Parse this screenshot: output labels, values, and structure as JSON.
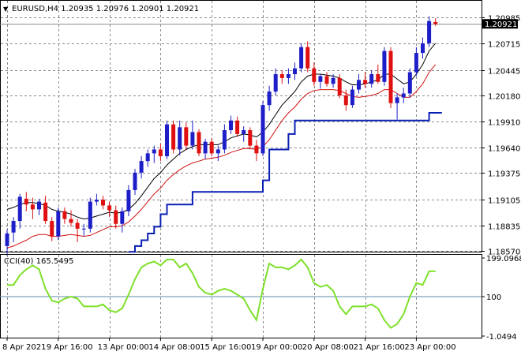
{
  "header": {
    "marker": "▼",
    "title": "EURUSD,H4  1.20935 1.20976 1.20901 1.20921"
  },
  "indicator": {
    "title": "CCI(40) 165.5495"
  },
  "price_axis": {
    "current_price": "1.20921",
    "current_price_value": 1.20921,
    "labels": [
      {
        "text": "1.20985",
        "value": 1.20985
      },
      {
        "text": "1.20715",
        "value": 1.20715
      },
      {
        "text": "1.20445",
        "value": 1.20445
      },
      {
        "text": "1.20180",
        "value": 1.2018
      },
      {
        "text": "1.19910",
        "value": 1.1991
      },
      {
        "text": "1.19640",
        "value": 1.1964
      },
      {
        "text": "1.19375",
        "value": 1.19375
      },
      {
        "text": "1.19105",
        "value": 1.19105
      },
      {
        "text": "1.18835",
        "value": 1.18835
      },
      {
        "text": "1.18570",
        "value": 1.1857
      }
    ]
  },
  "cci_axis": {
    "labels": [
      {
        "text": "199.0968",
        "value": 199.0968
      },
      {
        "text": "100",
        "value": 100
      },
      {
        "text": "-1.0494",
        "value": -1.0494
      }
    ]
  },
  "time_axis": {
    "labels": [
      "8 Apr 2021",
      "9 Apr 16:00",
      "13 Apr 00:00",
      "14 Apr 08:00",
      "15 Apr 16:00",
      "19 Apr 00:00",
      "20 Apr 08:00",
      "21 Apr 16:00",
      "23 Apr 00:00"
    ],
    "label_bars": [
      0,
      8,
      16,
      24,
      32,
      40,
      48,
      56,
      64
    ]
  },
  "colors": {
    "bull": "#1e1ec8",
    "bear": "#e01010",
    "ma_fast": "#000000",
    "ma_slow": "#d01010",
    "stop": "#0a1fb4",
    "cci": "#7ee02a",
    "grid": "#8a8a8a",
    "level": "#5b8ba8"
  },
  "chart_data": {
    "type": "candlestick",
    "symbol": "EURUSD",
    "timeframe": "H4",
    "ylim": [
      1.1857,
      1.2107
    ],
    "ohlc": [
      [
        1.1862,
        1.1879,
        1.1852,
        1.1875
      ],
      [
        1.1876,
        1.1892,
        1.1866,
        1.1888
      ],
      [
        1.1888,
        1.1916,
        1.188,
        1.1913
      ],
      [
        1.1911,
        1.1918,
        1.1898,
        1.1905
      ],
      [
        1.1905,
        1.1912,
        1.189,
        1.19
      ],
      [
        1.19,
        1.1911,
        1.1894,
        1.1908
      ],
      [
        1.1907,
        1.1914,
        1.1885,
        1.1888
      ],
      [
        1.1888,
        1.1892,
        1.1867,
        1.1872
      ],
      [
        1.1872,
        1.1902,
        1.1868,
        1.1898
      ],
      [
        1.1898,
        1.1902,
        1.1885,
        1.189
      ],
      [
        1.189,
        1.1899,
        1.1882,
        1.1886
      ],
      [
        1.1886,
        1.189,
        1.1866,
        1.188
      ],
      [
        1.188,
        1.1885,
        1.1872,
        1.188
      ],
      [
        1.188,
        1.1912,
        1.1876,
        1.1908
      ],
      [
        1.1908,
        1.1916,
        1.1904,
        1.191
      ],
      [
        1.191,
        1.1914,
        1.19,
        1.1904
      ],
      [
        1.1904,
        1.1908,
        1.1892,
        1.1899
      ],
      [
        1.1899,
        1.1904,
        1.188,
        1.1885
      ],
      [
        1.1885,
        1.1902,
        1.1876,
        1.1898
      ],
      [
        1.1898,
        1.1925,
        1.1893,
        1.192
      ],
      [
        1.192,
        1.1942,
        1.1915,
        1.1938
      ],
      [
        1.1938,
        1.1955,
        1.1932,
        1.195
      ],
      [
        1.195,
        1.1962,
        1.1944,
        1.1958
      ],
      [
        1.1958,
        1.1966,
        1.1948,
        1.1962
      ],
      [
        1.1962,
        1.1968,
        1.195,
        1.1955
      ],
      [
        1.1955,
        1.1992,
        1.1952,
        1.1988
      ],
      [
        1.1988,
        1.1992,
        1.1958,
        1.1962
      ],
      [
        1.1962,
        1.1992,
        1.1956,
        1.1985
      ],
      [
        1.1985,
        1.199,
        1.1962,
        1.1966
      ],
      [
        1.1966,
        1.1992,
        1.1962,
        1.198
      ],
      [
        1.198,
        1.1983,
        1.1955,
        1.1958
      ],
      [
        1.1958,
        1.1973,
        1.1952,
        1.197
      ],
      [
        1.197,
        1.1974,
        1.1955,
        1.1958
      ],
      [
        1.1958,
        1.1966,
        1.195,
        1.1962
      ],
      [
        1.1962,
        1.1988,
        1.1958,
        1.1982
      ],
      [
        1.1982,
        1.1997,
        1.1978,
        1.1992
      ],
      [
        1.1992,
        1.1996,
        1.1975,
        1.1978
      ],
      [
        1.1978,
        1.1986,
        1.197,
        1.1982
      ],
      [
        1.1982,
        1.1985,
        1.1962,
        1.1966
      ],
      [
        1.1966,
        1.1972,
        1.195,
        1.1958
      ],
      [
        1.1958,
        1.2012,
        1.1955,
        1.2008
      ],
      [
        1.2008,
        1.2028,
        1.2002,
        1.2022
      ],
      [
        1.2022,
        1.2046,
        1.2018,
        1.204
      ],
      [
        1.204,
        1.2044,
        1.203,
        1.2036
      ],
      [
        1.2036,
        1.2046,
        1.203,
        1.204
      ],
      [
        1.204,
        1.2052,
        1.2034,
        1.2046
      ],
      [
        1.2046,
        1.2072,
        1.2042,
        1.2068
      ],
      [
        1.2068,
        1.2074,
        1.2042,
        1.2046
      ],
      [
        1.2046,
        1.2052,
        1.2028,
        1.2032
      ],
      [
        1.2032,
        1.204,
        1.2025,
        1.2038
      ],
      [
        1.2038,
        1.2042,
        1.2027,
        1.203
      ],
      [
        1.203,
        1.204,
        1.2026,
        1.2036
      ],
      [
        1.2036,
        1.204,
        1.2015,
        1.2018
      ],
      [
        1.2018,
        1.2024,
        1.2002,
        1.2008
      ],
      [
        1.2008,
        1.2028,
        1.2005,
        1.2024
      ],
      [
        1.2024,
        1.204,
        1.202,
        1.2034
      ],
      [
        1.2034,
        1.2042,
        1.2026,
        1.203
      ],
      [
        1.203,
        1.2044,
        1.2026,
        1.204
      ],
      [
        1.204,
        1.205,
        1.203,
        1.2032
      ],
      [
        1.2032,
        1.2068,
        1.2028,
        1.2064
      ],
      [
        1.2064,
        1.2068,
        1.2005,
        1.201
      ],
      [
        1.201,
        1.202,
        1.1993,
        1.2016
      ],
      [
        1.2016,
        1.2026,
        1.201,
        1.202
      ],
      [
        1.202,
        1.2046,
        1.2016,
        1.2042
      ],
      [
        1.2042,
        1.2068,
        1.2038,
        1.2062
      ],
      [
        1.2062,
        1.2078,
        1.2056,
        1.2072
      ],
      [
        1.2072,
        1.21,
        1.2068,
        1.2095
      ],
      [
        1.2094,
        1.2098,
        1.209,
        1.2092
      ]
    ],
    "ma_fast": [
      1.19,
      1.1902,
      1.1905,
      1.1907,
      1.1907,
      1.1906,
      1.1904,
      1.19,
      1.1898,
      1.1897,
      1.1895,
      1.1892,
      1.189,
      1.1891,
      1.1893,
      1.1895,
      1.1897,
      1.1896,
      1.1897,
      1.19,
      1.1906,
      1.1914,
      1.1923,
      1.1932,
      1.1938,
      1.1946,
      1.1952,
      1.1958,
      1.1962,
      1.1965,
      1.1967,
      1.1967,
      1.1967,
      1.1967,
      1.197,
      1.1974,
      1.1976,
      1.1978,
      1.1977,
      1.1975,
      1.198,
      1.1988,
      1.1998,
      1.2008,
      1.2015,
      1.2022,
      1.2032,
      1.2038,
      1.204,
      1.204,
      1.2039,
      1.2038,
      1.2036,
      1.2032,
      1.2029,
      1.2029,
      1.203,
      1.2032,
      1.2034,
      1.204,
      1.204,
      1.2035,
      1.203,
      1.2032,
      1.204,
      1.205,
      1.2064,
      1.2072
    ],
    "ma_slow": [
      1.186,
      1.1862,
      1.1865,
      1.1868,
      1.1872,
      1.1874,
      1.1874,
      1.1872,
      1.1872,
      1.1873,
      1.1874,
      1.1873,
      1.1872,
      1.1873,
      1.1876,
      1.1879,
      1.1882,
      1.1882,
      1.1883,
      1.1887,
      1.1893,
      1.19,
      1.1908,
      1.1916,
      1.1922,
      1.193,
      1.1936,
      1.1941,
      1.1945,
      1.1948,
      1.195,
      1.1952,
      1.1953,
      1.1954,
      1.1956,
      1.1959,
      1.1961,
      1.1963,
      1.1963,
      1.1962,
      1.1965,
      1.1972,
      1.1982,
      1.1992,
      1.2,
      1.2006,
      1.2014,
      1.202,
      1.2023,
      1.2024,
      1.2024,
      1.2024,
      1.2023,
      1.202,
      1.2017,
      1.2016,
      1.2017,
      1.2018,
      1.202,
      1.2024,
      1.2024,
      1.202,
      1.2016,
      1.2016,
      1.2022,
      1.203,
      1.2042,
      1.205
    ],
    "stop_line": [
      null,
      null,
      null,
      null,
      null,
      null,
      null,
      null,
      null,
      null,
      null,
      null,
      null,
      null,
      null,
      null,
      null,
      null,
      null,
      1.1856,
      1.1862,
      1.1868,
      1.1875,
      1.1882,
      1.1895,
      1.1905,
      1.1905,
      1.1905,
      1.1905,
      1.1918,
      1.1918,
      1.1918,
      1.1918,
      1.1918,
      1.1918,
      1.1918,
      1.1918,
      1.1918,
      1.1918,
      1.1918,
      1.193,
      1.1962,
      1.1962,
      1.1962,
      1.1978,
      1.1992,
      1.1992,
      1.1992,
      1.1992,
      1.1992,
      1.1992,
      1.1992,
      1.1992,
      1.1992,
      1.1992,
      1.1992,
      1.1992,
      1.1992,
      1.1992,
      1.1992,
      1.1992,
      1.1992,
      1.1992,
      1.1992,
      1.1992,
      1.1992,
      1.2,
      1.2,
      1.2
    ],
    "cci": {
      "name": "CCI(40)",
      "ylim": [
        -1.0494,
        199.0968
      ],
      "level": 100,
      "values": [
        130,
        130,
        155,
        170,
        180,
        170,
        120,
        90,
        85,
        95,
        100,
        95,
        75,
        75,
        75,
        80,
        65,
        60,
        70,
        105,
        145,
        175,
        185,
        190,
        180,
        195,
        195,
        175,
        185,
        160,
        125,
        110,
        105,
        115,
        120,
        115,
        105,
        95,
        65,
        40,
        120,
        185,
        175,
        175,
        170,
        180,
        195,
        175,
        135,
        125,
        130,
        115,
        75,
        55,
        75,
        75,
        75,
        80,
        70,
        40,
        20,
        30,
        55,
        100,
        135,
        130,
        165,
        165
      ]
    }
  }
}
